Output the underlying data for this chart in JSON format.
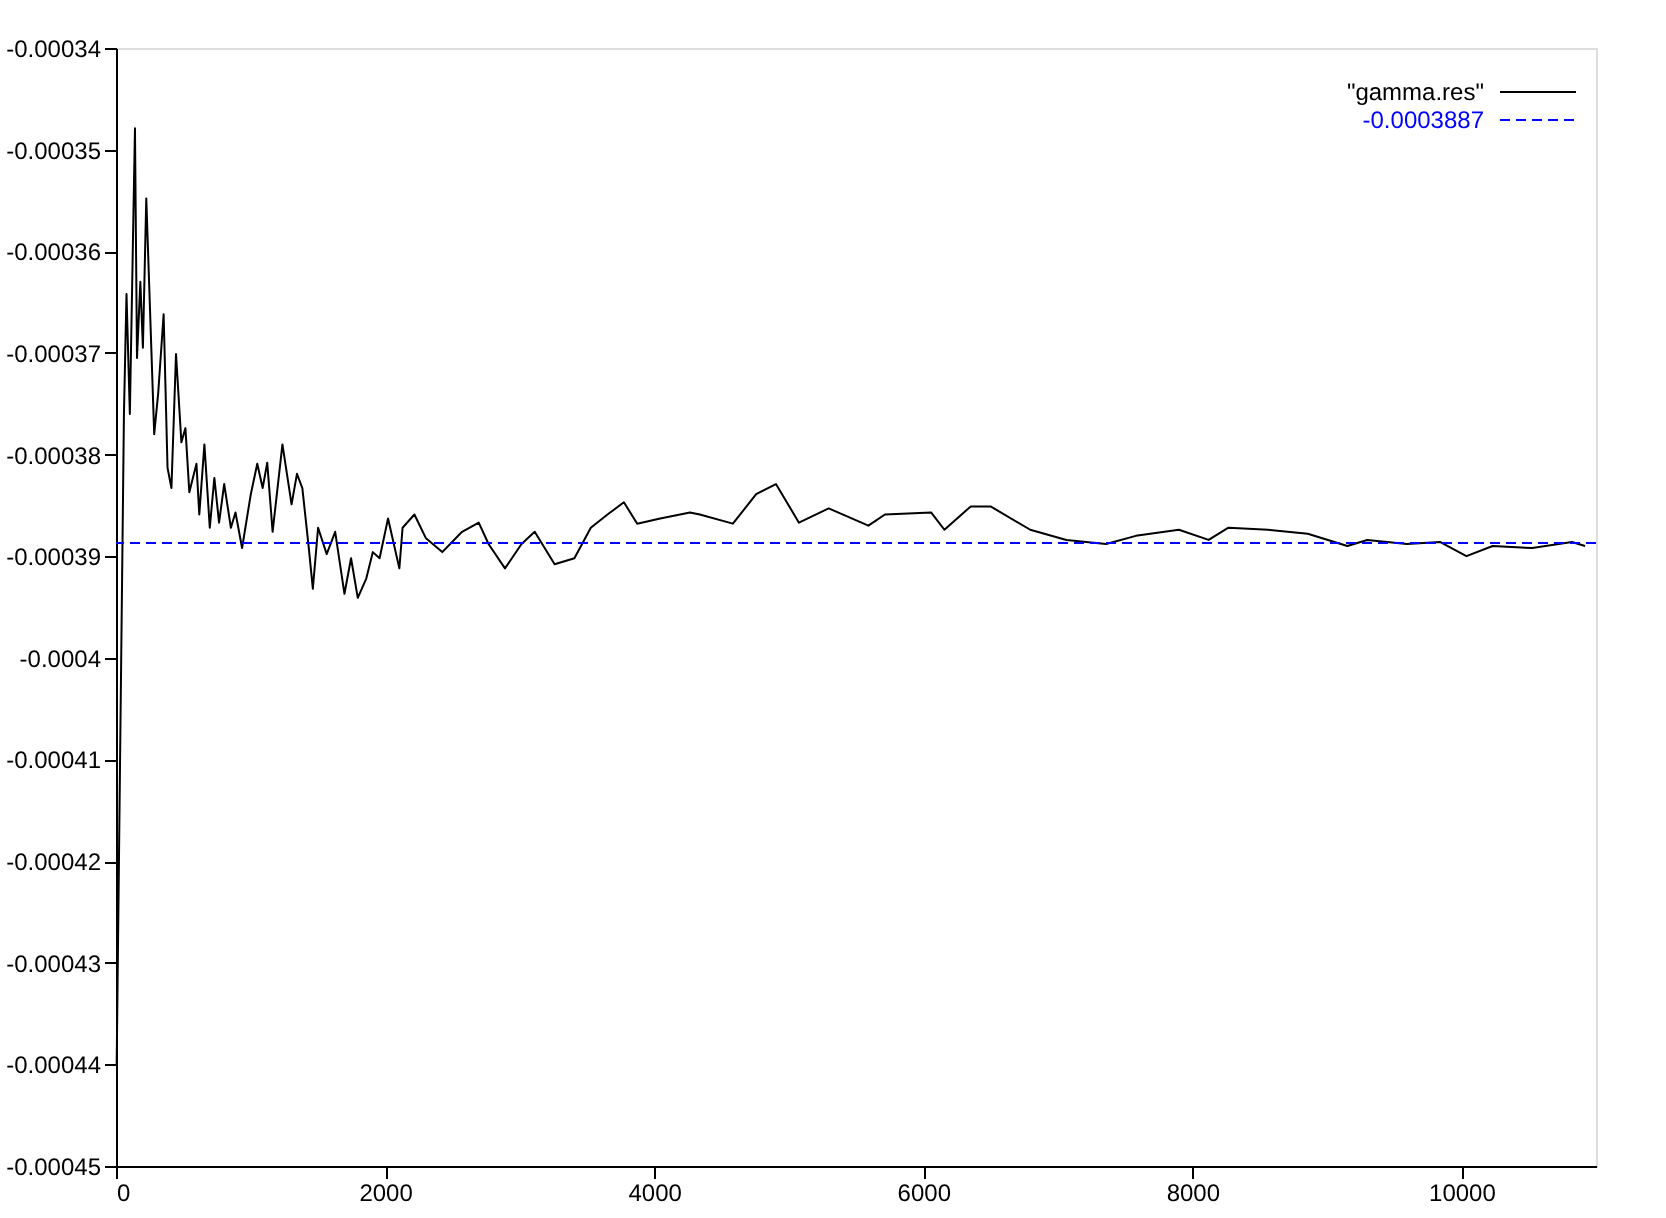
{
  "chart_data": {
    "type": "line",
    "x": [
      5,
      59,
      78,
      103,
      141,
      156,
      181,
      200,
      225,
      284,
      314,
      354,
      383,
      412,
      446,
      486,
      516,
      545,
      598,
      619,
      657,
      697,
      731,
      766,
      804,
      854,
      888,
      937,
      1002,
      1050,
      1090,
      1124,
      1164,
      1237,
      1305,
      1345,
      1385,
      1433,
      1463,
      1502,
      1566,
      1629,
      1698,
      1747,
      1797,
      1860,
      1909,
      1959,
      2022,
      2106,
      2130,
      2218,
      2302,
      2425,
      2572,
      2696,
      2769,
      2891,
      3014,
      3112,
      3260,
      3407,
      3529,
      3653,
      3775,
      3874,
      4045,
      4266,
      4339,
      4585,
      4758,
      4905,
      5076,
      5297,
      5592,
      5715,
      6058,
      6157,
      6353,
      6500,
      6795,
      7064,
      7359,
      7580,
      7900,
      8121,
      8268,
      8563,
      8858,
      9152,
      9300,
      9594,
      9840,
      10037,
      10232,
      10526,
      10821,
      10919
    ],
    "series": [
      {
        "name": "\"gamma.res\"",
        "color": "#000000",
        "values": [
          -0.00044,
          -0.000376,
          -0.0003642,
          -0.000376,
          -0.0003479,
          -0.0003705,
          -0.000363,
          -0.0003695,
          -0.0003548,
          -0.000378,
          -0.0003739,
          -0.0003662,
          -0.0003813,
          -0.0003833,
          -0.0003701,
          -0.0003788,
          -0.0003774,
          -0.0003837,
          -0.0003809,
          -0.0003859,
          -0.000379,
          -0.0003872,
          -0.0003823,
          -0.0003867,
          -0.0003829,
          -0.0003872,
          -0.0003857,
          -0.0003892,
          -0.0003839,
          -0.0003809,
          -0.0003833,
          -0.0003808,
          -0.0003876,
          -0.000379,
          -0.0003849,
          -0.0003819,
          -0.0003833,
          -0.0003892,
          -0.0003932,
          -0.0003872,
          -0.0003898,
          -0.0003876,
          -0.0003937,
          -0.0003902,
          -0.0003941,
          -0.0003922,
          -0.0003896,
          -0.0003902,
          -0.0003863,
          -0.0003912,
          -0.0003872,
          -0.0003859,
          -0.0003882,
          -0.0003896,
          -0.0003876,
          -0.0003867,
          -0.0003888,
          -0.0003912,
          -0.0003888,
          -0.0003876,
          -0.0003908,
          -0.0003902,
          -0.0003872,
          -0.0003859,
          -0.0003847,
          -0.0003868,
          -0.0003863,
          -0.0003857,
          -0.0003859,
          -0.0003868,
          -0.0003839,
          -0.0003829,
          -0.0003867,
          -0.0003853,
          -0.000387,
          -0.0003859,
          -0.0003857,
          -0.0003874,
          -0.0003851,
          -0.0003851,
          -0.0003874,
          -0.0003884,
          -0.0003888,
          -0.000388,
          -0.0003874,
          -0.0003884,
          -0.0003872,
          -0.0003874,
          -0.0003878,
          -0.000389,
          -0.0003884,
          -0.0003888,
          -0.0003886,
          -0.00039,
          -0.000389,
          -0.0003892,
          -0.0003886,
          -0.000389
        ]
      }
    ],
    "ref_lines": [
      {
        "axis": "y",
        "value": -0.0003887,
        "label": "-0.0003887",
        "color": "#0000ff",
        "line_style": "dashed"
      }
    ],
    "xlim": [
      0,
      11000
    ],
    "xticks": [
      0,
      2000,
      4000,
      6000,
      8000,
      10000
    ],
    "ylim": [
      -0.00045,
      -0.00034
    ],
    "yticks": [
      -0.00045,
      -0.00044,
      -0.00043,
      -0.00042,
      -0.00041,
      -0.0004,
      -0.00039,
      -0.00038,
      -0.00037,
      -0.00036,
      -0.00035,
      -0.00034
    ],
    "grid": false,
    "legend": "top right",
    "marker": "none",
    "line_style": "solid"
  }
}
